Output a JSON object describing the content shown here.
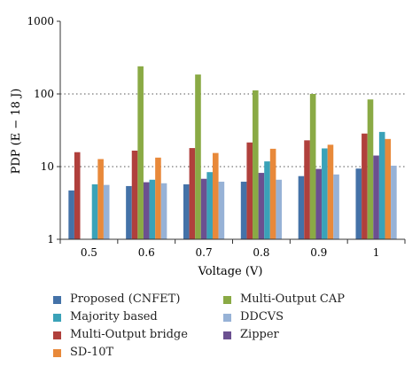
{
  "chart_data": {
    "type": "bar",
    "ylabel": "PDP (E − 18 J)",
    "xlabel": "Voltage (V)",
    "yscale": "log",
    "ylim": [
      1,
      1000
    ],
    "yticks": [
      "1",
      "10",
      "100",
      "1000"
    ],
    "grid": "dotted horizontal at major ticks",
    "categories": [
      "0.5",
      "0.6",
      "0.7",
      "0.8",
      "0.9",
      "1"
    ],
    "legend_position": "bottom",
    "series": [
      {
        "name": "Proposed (CNFET)",
        "color": "#4472a8",
        "values": [
          4.7,
          5.4,
          5.7,
          6.2,
          7.4,
          9.4
        ]
      },
      {
        "name": "Multi-Output bridge",
        "color": "#b0403c",
        "values": [
          15.8,
          16.6,
          18.0,
          21.5,
          23.0,
          28.5
        ]
      },
      {
        "name": "Multi-Output CAP",
        "color": "#8aaa45",
        "values": [
          null,
          240,
          185,
          112,
          100,
          84
        ]
      },
      {
        "name": "Zipper",
        "color": "#6b5090",
        "values": [
          null,
          6.1,
          6.8,
          8.2,
          9.3,
          14.2
        ]
      },
      {
        "name": "Majority based",
        "color": "#3aa2b8",
        "values": [
          5.7,
          6.6,
          8.4,
          11.8,
          17.8,
          30.0
        ]
      },
      {
        "name": "SD-10T",
        "color": "#e8893a",
        "values": [
          12.7,
          13.3,
          15.4,
          17.6,
          20.0,
          24.0
        ]
      },
      {
        "name": "DDCVS",
        "color": "#97b2d6",
        "values": [
          5.6,
          5.9,
          6.2,
          6.6,
          7.8,
          10.3
        ]
      }
    ]
  },
  "legend": [
    {
      "label": "Proposed (CNFET)",
      "color": "#4472a8"
    },
    {
      "label": "Multi-Output CAP",
      "color": "#8aaa45"
    },
    {
      "label": "Majority based",
      "color": "#3aa2b8"
    },
    {
      "label": "DDCVS",
      "color": "#97b2d6"
    },
    {
      "label": "Multi-Output bridge",
      "color": "#b0403c"
    },
    {
      "label": "Zipper",
      "color": "#6b5090"
    },
    {
      "label": "SD-10T",
      "color": "#e8893a"
    }
  ]
}
